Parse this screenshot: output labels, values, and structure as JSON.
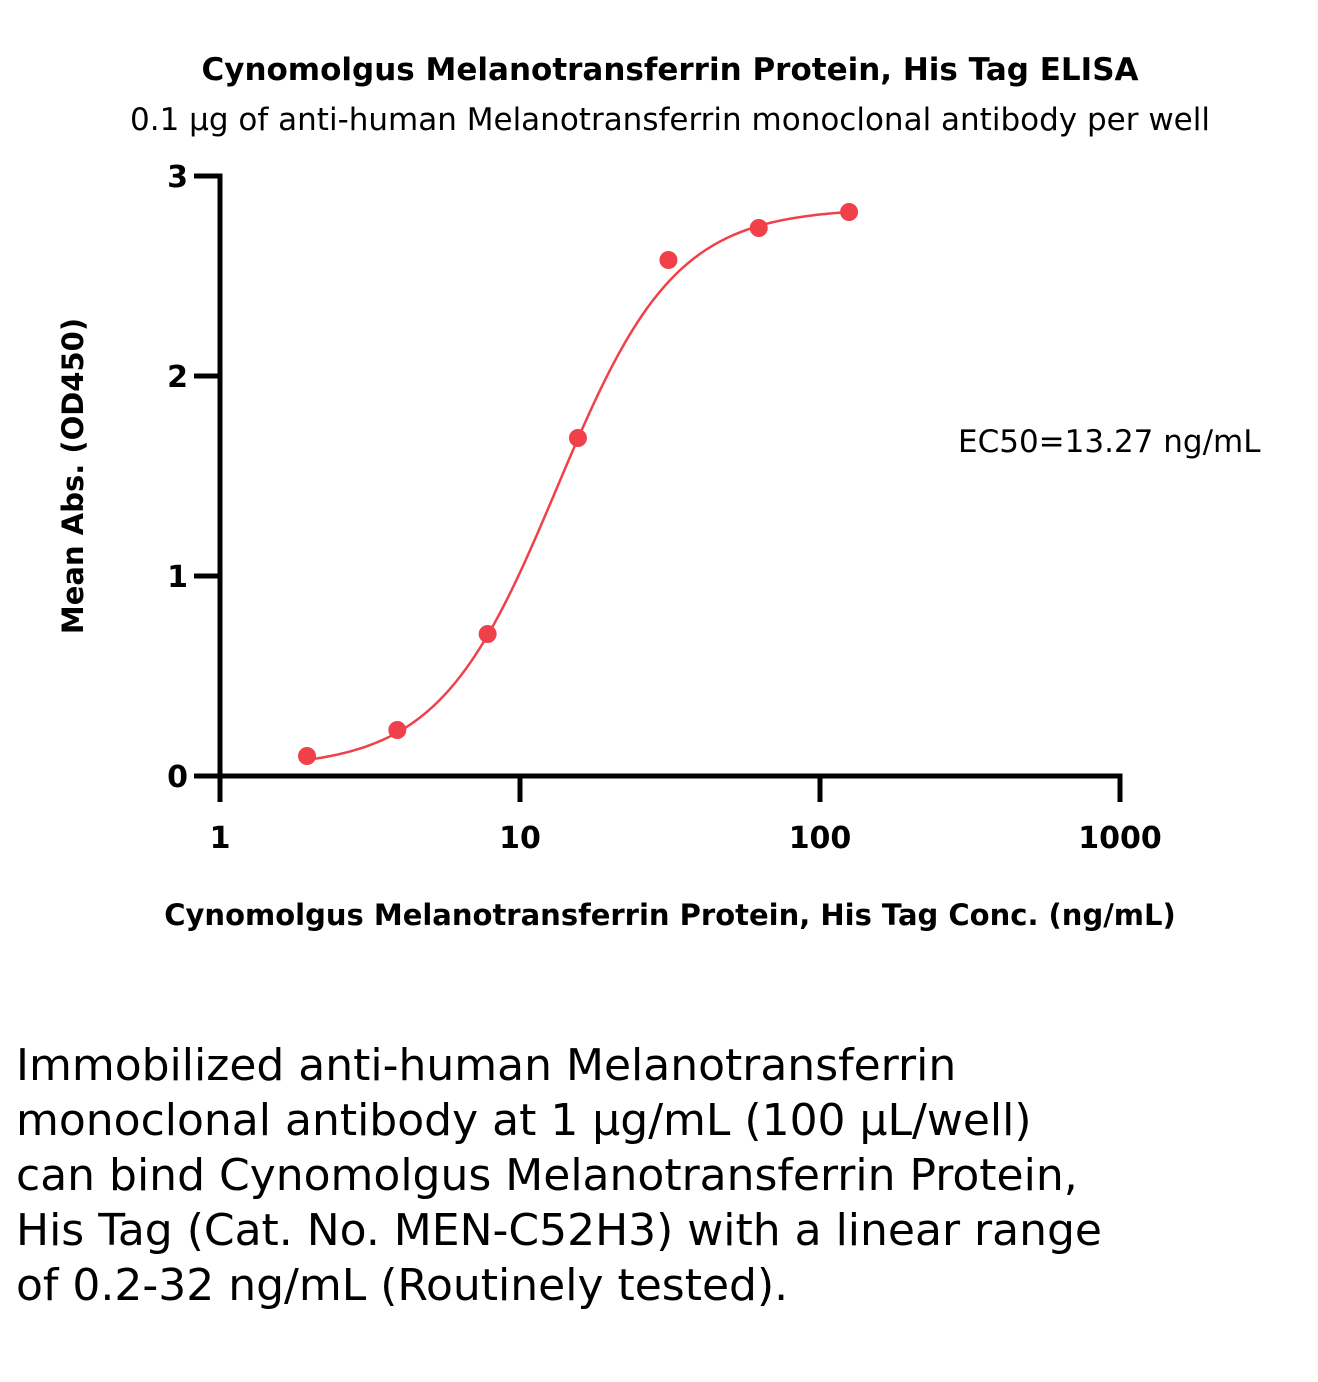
{
  "chart_data": {
    "type": "scatter",
    "title": "Cynomolgus Melanotransferrin Protein, His Tag ELISA",
    "subtitle": "0.1 µg of anti-human Melanotransferrin monoclonal antibody per well",
    "xlabel": "Cynomolgus Melanotransferrin Protein, His Tag Conc. (ng/mL)",
    "ylabel": "Mean Abs. (OD450)",
    "xscale": "log",
    "xlim": [
      1,
      1000
    ],
    "ylim": [
      0,
      3
    ],
    "xticks": [
      {
        "value": 1,
        "label": "1"
      },
      {
        "value": 10,
        "label": "10"
      },
      {
        "value": 100,
        "label": "100"
      },
      {
        "value": 1000,
        "label": "1000"
      }
    ],
    "yticks": [
      {
        "value": 0,
        "label": "0"
      },
      {
        "value": 1,
        "label": "1"
      },
      {
        "value": 2,
        "label": "2"
      },
      {
        "value": 3,
        "label": "3"
      }
    ],
    "series": [
      {
        "color": "#f0404a",
        "x": [
          1.95,
          3.9,
          7.8,
          15.6,
          31.25,
          62.5,
          125
        ],
        "y": [
          0.1,
          0.23,
          0.71,
          1.69,
          2.58,
          2.74,
          2.82
        ],
        "fit_curve": "sigmoidal (4PL)"
      }
    ],
    "annotation": "EC50=13.27 ng/mL",
    "grid": false,
    "legend": "none"
  },
  "caption": "Immobilized anti-human Melanotransferrin monoclonal antibody at 1 µg/mL (100 µL/well) can bind Cynomolgus Melanotransferrin Protein, His Tag (Cat. No. MEN-C52H3) with a linear range of 0.2-32 ng/mL (Routinely tested)."
}
